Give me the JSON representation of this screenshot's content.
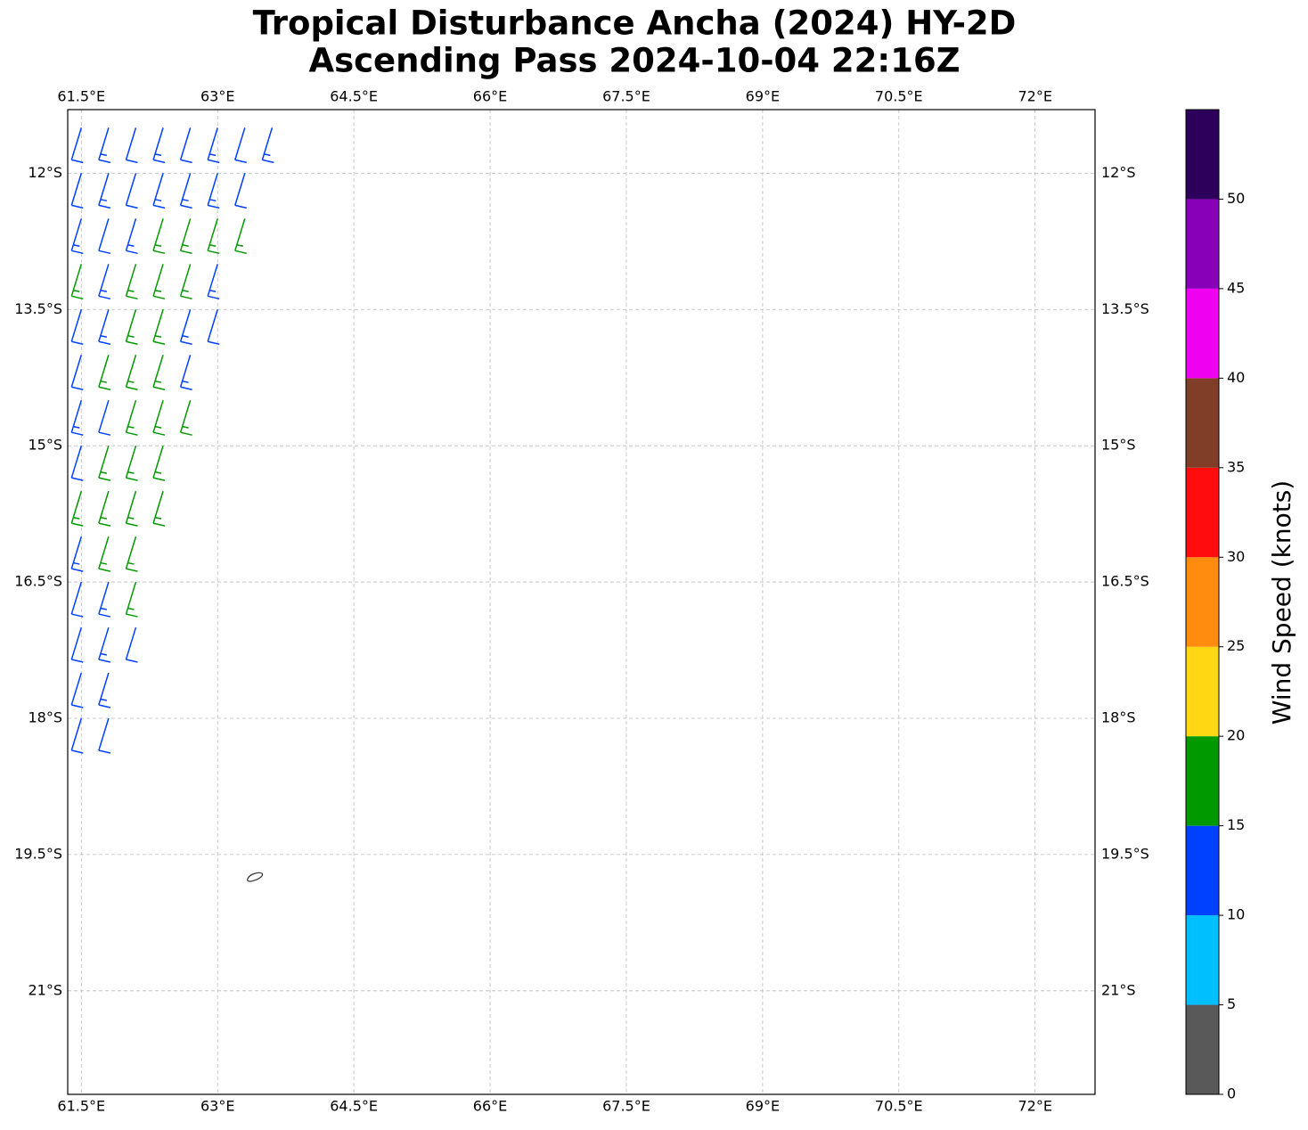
{
  "chart_data": {
    "type": "barb-map",
    "title": "Tropical Disturbance Ancha (2024) HY-2D",
    "subtitle": "Ascending Pass 2024-10-04 22:16Z",
    "xlim": [
      61.35,
      72.66
    ],
    "ylim": [
      -22.14,
      -11.3
    ],
    "xticks": [
      {
        "value": 61.5,
        "label": "61.5°E"
      },
      {
        "value": 63,
        "label": "63°E"
      },
      {
        "value": 64.5,
        "label": "64.5°E"
      },
      {
        "value": 66,
        "label": "66°E"
      },
      {
        "value": 67.5,
        "label": "67.5°E"
      },
      {
        "value": 69,
        "label": "69°E"
      },
      {
        "value": 70.5,
        "label": "70.5°E"
      },
      {
        "value": 72,
        "label": "72°E"
      }
    ],
    "yticks": [
      {
        "value": -12,
        "label": "12°S"
      },
      {
        "value": -13.5,
        "label": "13.5°S"
      },
      {
        "value": -15,
        "label": "15°S"
      },
      {
        "value": -16.5,
        "label": "16.5°S"
      },
      {
        "value": -18,
        "label": "18°S"
      },
      {
        "value": -19.5,
        "label": "19.5°S"
      },
      {
        "value": -21,
        "label": "21°S"
      }
    ],
    "grid": true,
    "barbs": {
      "lon": [
        61.5,
        61.8,
        62.1,
        62.4,
        62.7,
        63.0,
        63.3,
        63.6,
        61.5,
        61.8,
        62.1,
        62.4,
        62.7,
        63.0,
        63.3,
        61.5,
        61.8,
        62.1,
        62.4,
        62.7,
        63.0,
        63.3,
        61.5,
        61.8,
        62.1,
        62.4,
        62.7,
        63.0,
        61.5,
        61.8,
        62.1,
        62.4,
        62.7,
        63.0,
        61.5,
        61.8,
        62.1,
        62.4,
        62.7,
        61.5,
        61.8,
        62.1,
        62.4,
        62.7,
        61.5,
        61.8,
        62.1,
        62.4,
        61.5,
        61.8,
        62.1,
        62.4,
        61.5,
        61.8,
        62.1,
        61.5,
        61.8,
        62.1,
        61.5,
        61.8,
        62.1,
        61.5,
        61.8,
        61.5,
        61.8
      ],
      "lat": [
        -11.5,
        -11.5,
        -11.5,
        -11.5,
        -11.5,
        -11.5,
        -11.5,
        -11.5,
        -12,
        -12,
        -12,
        -12,
        -12,
        -12,
        -12,
        -12.5,
        -12.5,
        -12.5,
        -12.5,
        -12.5,
        -12.5,
        -12.5,
        -13,
        -13,
        -13,
        -13,
        -13,
        -13,
        -13.5,
        -13.5,
        -13.5,
        -13.5,
        -13.5,
        -13.5,
        -14,
        -14,
        -14,
        -14,
        -14,
        -14.5,
        -14.5,
        -14.5,
        -14.5,
        -14.5,
        -15,
        -15,
        -15,
        -15,
        -15.5,
        -15.5,
        -15.5,
        -15.5,
        -16,
        -16,
        -16,
        -16.5,
        -16.5,
        -16.5,
        -17,
        -17,
        -17,
        -17.5,
        -17.5,
        -18,
        -18
      ],
      "speed": [
        12,
        13,
        12,
        13,
        12,
        13,
        12,
        13,
        12,
        13,
        12,
        13,
        14,
        13,
        12,
        13,
        12,
        14,
        16,
        17,
        16,
        15,
        17,
        13,
        16,
        17,
        16,
        14,
        12,
        13,
        17,
        16,
        13,
        12,
        12,
        16,
        17,
        16,
        13,
        13,
        12,
        17,
        16,
        17,
        12,
        17,
        17,
        16,
        17,
        16,
        17,
        16,
        13,
        17,
        16,
        12,
        13,
        16,
        12,
        13,
        12,
        12,
        13,
        12,
        12
      ]
    },
    "colorbar": {
      "label": "Wind Speed (knots)",
      "bounds": [
        0,
        5,
        10,
        15,
        20,
        25,
        30,
        35,
        40,
        45,
        50,
        55
      ],
      "colors": [
        "#595959",
        "#00bfff",
        "#0040ff",
        "#009900",
        "#ffd712",
        "#ff8c0e",
        "#ff0d0d",
        "#803d28",
        "#f000f0",
        "#8800b8",
        "#2d005c"
      ],
      "ticks": [
        0,
        5,
        10,
        15,
        20,
        25,
        30,
        35,
        40,
        45,
        50
      ]
    }
  }
}
